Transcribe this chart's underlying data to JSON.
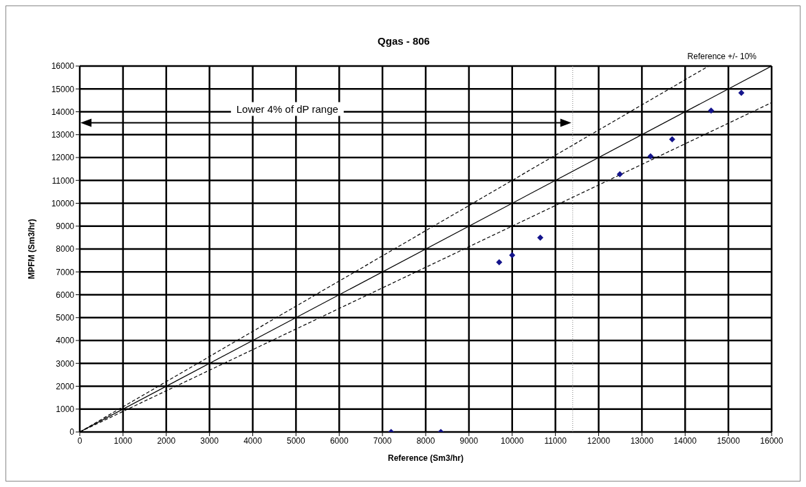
{
  "chart_data": {
    "type": "scatter",
    "title": "Qgas - 806",
    "xlabel": "Reference (Sm3/hr)",
    "ylabel": "MPFM (Sm3/hr)",
    "annotations": [
      "Reference +/- 10%",
      "Lower 4% of dP range"
    ],
    "xlim": [
      0,
      16000
    ],
    "xticks": [
      0,
      1000,
      2000,
      3000,
      4000,
      5000,
      6000,
      7000,
      8000,
      9000,
      10000,
      11000,
      12000,
      13000,
      14000,
      15000,
      16000
    ],
    "ylim": [
      0,
      16000
    ],
    "yticks": [
      0,
      1000,
      2000,
      3000,
      4000,
      5000,
      6000,
      7000,
      8000,
      9000,
      10000,
      11000,
      12000,
      13000,
      14000,
      15000,
      16000
    ],
    "grid": true,
    "series": [
      {
        "marker": "diamond",
        "color": "#14148c",
        "x": [
          7200,
          8350,
          9700,
          10000,
          10650,
          12490,
          13200,
          13700,
          14600,
          15300
        ],
        "values": [
          0,
          0,
          7420,
          7730,
          8500,
          11270,
          12050,
          12800,
          14050,
          14830
        ]
      },
      {
        "type": "line",
        "color": "#000000",
        "line_style": "solid",
        "x": [
          0,
          16000
        ],
        "values": [
          0,
          16000
        ]
      },
      {
        "type": "line",
        "color": "#000000",
        "line_style": "dashed",
        "x": [
          0,
          14545
        ],
        "values": [
          0,
          16000
        ]
      },
      {
        "type": "line",
        "color": "#000000",
        "line_style": "dashed",
        "x": [
          0,
          16000
        ],
        "values": [
          0,
          14400
        ]
      }
    ],
    "ref_lines": [
      {
        "axis": "x",
        "value": 11400,
        "color": "#808080",
        "line_style": "dotted"
      }
    ]
  }
}
